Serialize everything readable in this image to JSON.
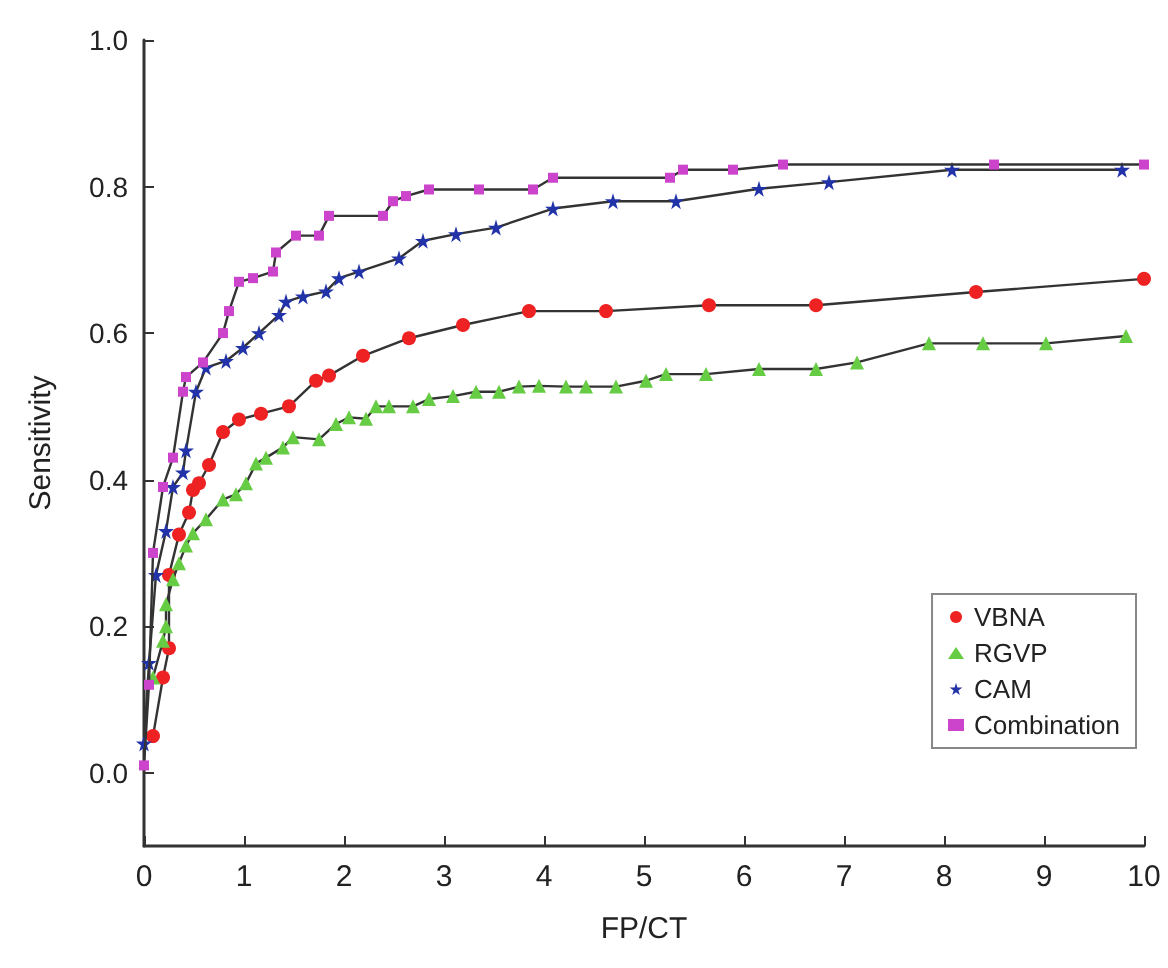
{
  "chart_data": {
    "type": "line",
    "xlabel": "FP/CT",
    "ylabel": "Sensitivity",
    "xlim": [
      0,
      10
    ],
    "xticks": [
      0,
      1,
      2,
      3,
      4,
      5,
      6,
      7,
      8,
      9,
      10
    ],
    "ylim": [
      -0.1,
      1.0
    ],
    "yticks": [
      "0.0",
      0.2,
      0.4,
      0.6,
      0.8,
      "1.0"
    ],
    "grid": false,
    "legend": "bottom right",
    "series": [
      {
        "name": "VBNA",
        "color": "#ee2222",
        "marker": "circle",
        "x": [
          0.09,
          0.19,
          0.25,
          0.25,
          0.35,
          0.45,
          0.49,
          0.55,
          0.65,
          0.79,
          0.95,
          1.17,
          1.45,
          1.72,
          1.85,
          2.19,
          2.65,
          3.19,
          3.85,
          4.62,
          5.65,
          6.72,
          8.32,
          10
        ],
        "values": [
          0.05,
          0.13,
          0.17,
          0.27,
          0.325,
          0.355,
          0.386,
          0.395,
          0.42,
          0.465,
          0.482,
          0.49,
          0.5,
          0.535,
          0.542,
          0.569,
          0.593,
          0.611,
          0.63,
          0.63,
          0.638,
          0.638,
          0.656,
          0.674
        ]
      },
      {
        "name": "RGVP",
        "color": "#66cc44",
        "marker": "triangle",
        "x": [
          0.09,
          0.19,
          0.22,
          0.22,
          0.29,
          0.35,
          0.42,
          0.49,
          0.62,
          0.79,
          0.92,
          1.02,
          1.12,
          1.22,
          1.39,
          1.49,
          1.75,
          1.92,
          2.05,
          2.22,
          2.32,
          2.45,
          2.69,
          2.85,
          3.09,
          3.32,
          3.55,
          3.75,
          3.95,
          4.22,
          4.42,
          4.72,
          5.02,
          5.22,
          5.62,
          6.15,
          6.72,
          7.13,
          7.85,
          8.39,
          9.02,
          9.82
        ],
        "values": [
          0.13,
          0.18,
          0.2,
          0.23,
          0.264,
          0.286,
          0.31,
          0.327,
          0.346,
          0.373,
          0.38,
          0.395,
          0.422,
          0.43,
          0.444,
          0.458,
          0.455,
          0.476,
          0.485,
          0.483,
          0.5,
          0.5,
          0.5,
          0.51,
          0.514,
          0.52,
          0.52,
          0.527,
          0.528,
          0.527,
          0.527,
          0.527,
          0.535,
          0.544,
          0.544,
          0.551,
          0.551,
          0.56,
          0.586,
          0.586,
          0.586,
          0.596
        ]
      },
      {
        "name": "CAM",
        "color": "#2233aa",
        "marker": "star",
        "x": [
          0,
          0.05,
          0.12,
          0.22,
          0.29,
          0.39,
          0.42,
          0.52,
          0.62,
          0.82,
          0.99,
          1.15,
          1.35,
          1.42,
          1.59,
          1.82,
          1.95,
          2.15,
          2.55,
          2.79,
          3.12,
          3.52,
          4.09,
          4.69,
          5.32,
          6.15,
          6.85,
          8.08,
          9.78
        ],
        "values": [
          0.04,
          0.15,
          0.27,
          0.33,
          0.39,
          0.41,
          0.44,
          0.52,
          0.553,
          0.562,
          0.58,
          0.6,
          0.625,
          0.643,
          0.65,
          0.657,
          0.675,
          0.684,
          0.702,
          0.726,
          0.735,
          0.744,
          0.77,
          0.78,
          0.78,
          0.797,
          0.806,
          0.823,
          0.823
        ]
      },
      {
        "name": "Combination",
        "color": "#cc44cc",
        "marker": "square",
        "x": [
          0,
          0.05,
          0.09,
          0.19,
          0.29,
          0.39,
          0.42,
          0.59,
          0.79,
          0.85,
          0.95,
          1.09,
          1.29,
          1.32,
          1.52,
          1.75,
          1.85,
          2.39,
          2.49,
          2.62,
          2.85,
          3.35,
          3.89,
          4.09,
          5.26,
          5.39,
          5.89,
          6.39,
          8.5,
          10
        ],
        "values": [
          0.01,
          0.12,
          0.3,
          0.39,
          0.43,
          0.52,
          0.54,
          0.56,
          0.6,
          0.63,
          0.67,
          0.675,
          0.684,
          0.71,
          0.733,
          0.733,
          0.76,
          0.76,
          0.78,
          0.787,
          0.796,
          0.796,
          0.796,
          0.812,
          0.812,
          0.823,
          0.823,
          0.83,
          0.83,
          0.83
        ]
      }
    ]
  }
}
